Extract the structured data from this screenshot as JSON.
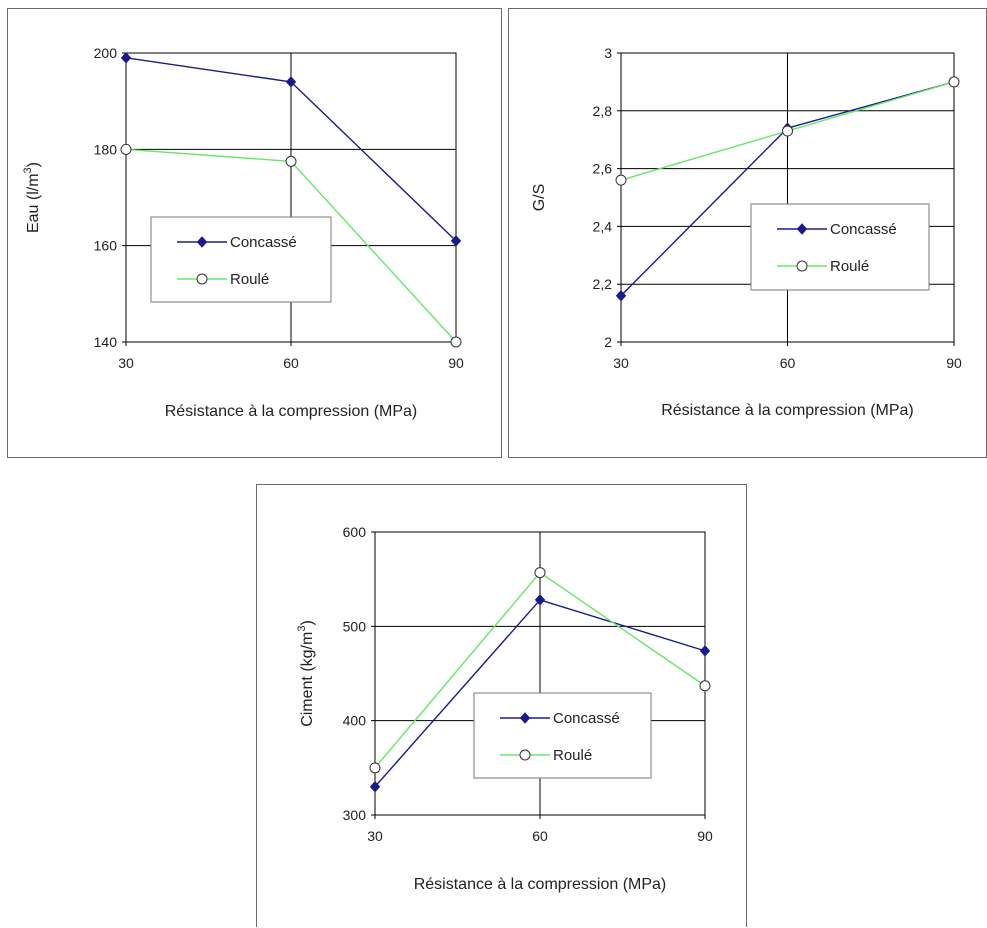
{
  "x_axis_label": "Résistance à la compression (MPa)",
  "legend": {
    "crushed": "Concassé",
    "rolled": "Roulé"
  },
  "colors": {
    "crushed": "#1a1a8c",
    "rolled": "#66e866",
    "grid": "#000000"
  },
  "chart_data": [
    {
      "type": "line",
      "ylabel_main": "Eau (l/m",
      "ylabel_sup": "3",
      "ylabel_end": ")",
      "x": [
        30,
        60,
        90
      ],
      "xlim": [
        30,
        90
      ],
      "ylim": [
        140,
        200
      ],
      "yticks": [
        "140",
        "160",
        "180",
        "200"
      ],
      "ytick_values": [
        140,
        160,
        180,
        200
      ],
      "xticks": [
        "30",
        "60",
        "90"
      ],
      "legend_placement": "lower-left",
      "series": [
        {
          "name": "Concassé",
          "marker": "filled-diamond",
          "values": [
            199,
            194,
            161
          ]
        },
        {
          "name": "Roulé",
          "marker": "open-circle",
          "values": [
            180,
            177.5,
            140
          ]
        }
      ]
    },
    {
      "type": "line",
      "ylabel_main": "G/S",
      "ylabel_sup": "",
      "ylabel_end": "",
      "x": [
        30,
        60,
        90
      ],
      "xlim": [
        30,
        90
      ],
      "ylim": [
        2,
        3
      ],
      "yticks": [
        "2",
        "2,2",
        "2,4",
        "2,6",
        "2,8",
        "3"
      ],
      "ytick_values": [
        2,
        2.2,
        2.4,
        2.6,
        2.8,
        3
      ],
      "xticks": [
        "30",
        "60",
        "90"
      ],
      "legend_placement": "lower-right",
      "series": [
        {
          "name": "Concassé",
          "marker": "filled-diamond",
          "values": [
            2.16,
            2.74,
            2.9
          ]
        },
        {
          "name": "Roulé",
          "marker": "open-circle",
          "values": [
            2.56,
            2.73,
            2.9
          ]
        }
      ]
    },
    {
      "type": "line",
      "ylabel_main": "Ciment (kg/m",
      "ylabel_sup": "3",
      "ylabel_end": ")",
      "x": [
        30,
        60,
        90
      ],
      "xlim": [
        30,
        90
      ],
      "ylim": [
        300,
        600
      ],
      "yticks": [
        "300",
        "400",
        "500",
        "600"
      ],
      "ytick_values": [
        300,
        400,
        500,
        600
      ],
      "xticks": [
        "30",
        "60",
        "90"
      ],
      "legend_placement": "center",
      "series": [
        {
          "name": "Concassé",
          "marker": "filled-diamond",
          "values": [
            330,
            528,
            474
          ]
        },
        {
          "name": "Roulé",
          "marker": "open-circle",
          "values": [
            350,
            557,
            437
          ]
        }
      ]
    }
  ]
}
